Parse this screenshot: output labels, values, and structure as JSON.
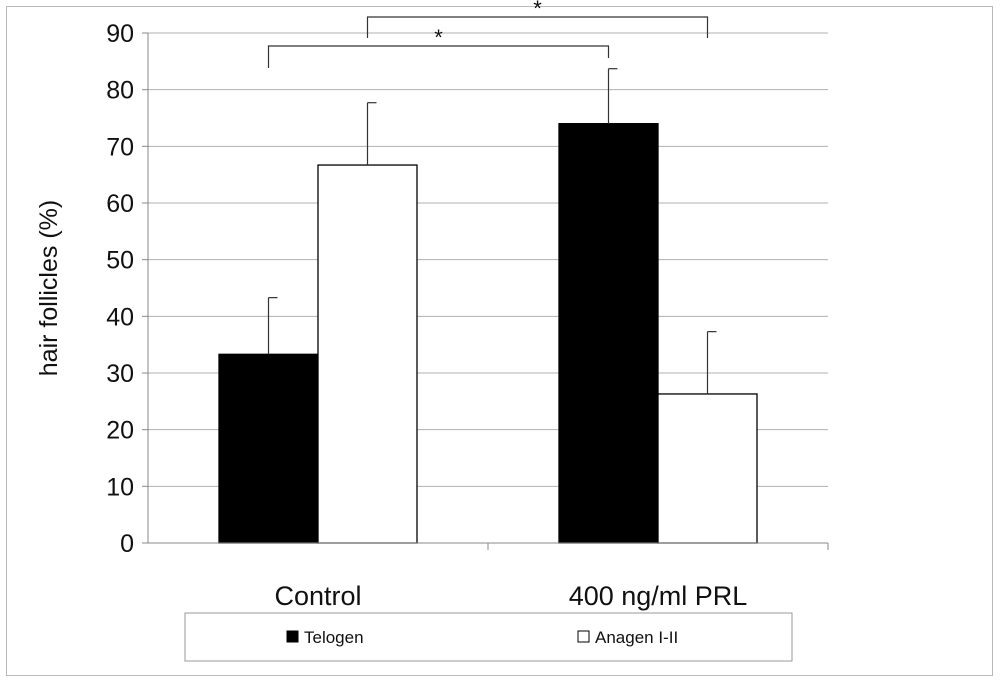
{
  "chart_data": {
    "type": "bar",
    "categories": [
      "Control",
      "400 ng/ml PRL"
    ],
    "series": [
      {
        "name": "Telogen",
        "values": [
          33.3,
          74.0
        ],
        "errors": [
          10.0,
          9.7
        ],
        "color": "#000000"
      },
      {
        "name": "Anagen I-II",
        "values": [
          66.7,
          26.3
        ],
        "errors": [
          11.0,
          11.0
        ],
        "color": "#ffffff"
      }
    ],
    "ylabel": "hair follicles (%)",
    "xlabel": "",
    "ylim": [
      0,
      90
    ],
    "yticks": [
      0,
      10,
      20,
      30,
      40,
      50,
      60,
      70,
      80,
      90
    ],
    "grid": true,
    "legend_position": "bottom",
    "significance": [
      {
        "label": "*",
        "from": "Control · Telogen",
        "to": "400 ng/ml PRL · Telogen"
      },
      {
        "label": "*",
        "from": "Control · Anagen I-II",
        "to": "400 ng/ml PRL · Anagen I-II"
      }
    ]
  }
}
